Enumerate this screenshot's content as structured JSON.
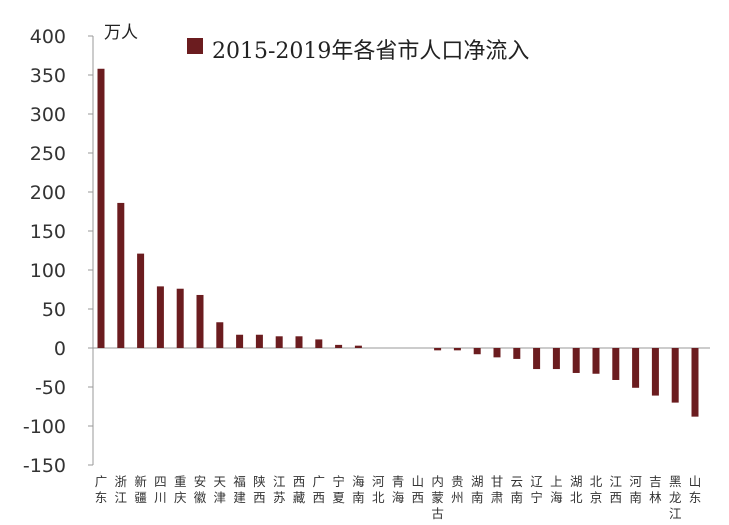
{
  "chart_data": {
    "type": "bar",
    "title": "",
    "unit": "万人",
    "legend": [
      "2015-2019年各省市人口净流入"
    ],
    "xlabel": "",
    "ylabel": "",
    "ylim": [
      -150,
      400
    ],
    "yticks": [
      400,
      350,
      300,
      250,
      200,
      150,
      100,
      50,
      0,
      -50,
      -100,
      -150
    ],
    "grid": false,
    "legend_position": "top",
    "colors": {
      "bar": "#6B1C1F",
      "axis": "#999999"
    },
    "categories": [
      "广东",
      "浙江",
      "新疆",
      "四川",
      "重庆",
      "安徽",
      "天津",
      "福建",
      "陕西",
      "江苏",
      "西藏",
      "广西",
      "宁夏",
      "海南",
      "河北",
      "青海",
      "山西",
      "内蒙古",
      "贵州",
      "湖南",
      "甘肃",
      "云南",
      "辽宁",
      "上海",
      "湖北",
      "北京",
      "江西",
      "河南",
      "吉林",
      "黑龙江",
      "山东"
    ],
    "series": [
      {
        "name": "2015-2019年各省市人口净流入",
        "values": [
          358,
          186,
          121,
          79,
          76,
          68,
          33,
          17,
          17,
          15,
          15,
          11,
          4,
          3,
          0,
          0,
          0,
          -3,
          -3,
          -8,
          -12,
          -14,
          -27,
          -27,
          -32,
          -33,
          -41,
          -51,
          -61,
          -70,
          -88
        ]
      }
    ]
  }
}
